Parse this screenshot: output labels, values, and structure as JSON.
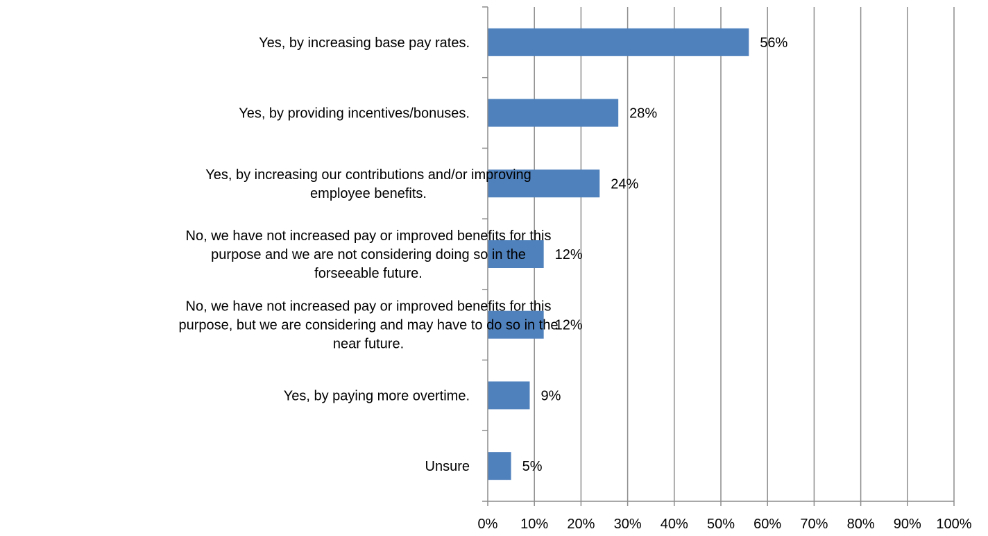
{
  "chart_data": {
    "type": "bar",
    "orientation": "horizontal",
    "title": "",
    "xlabel": "",
    "ylabel": "",
    "xlim": [
      0,
      100
    ],
    "x_ticks": [
      0,
      10,
      20,
      30,
      40,
      50,
      60,
      70,
      80,
      90,
      100
    ],
    "x_tick_labels": [
      "0%",
      "10%",
      "20%",
      "30%",
      "40%",
      "50%",
      "60%",
      "70%",
      "80%",
      "90%",
      "100%"
    ],
    "grid": true,
    "legend": "none",
    "bar_color": "#4f81bd",
    "categories": [
      [
        "Yes, by increasing base pay rates."
      ],
      [
        "Yes, by providing incentives/bonuses."
      ],
      [
        "Yes, by increasing our contributions and/or improving",
        "employee benefits."
      ],
      [
        "No, we have not increased pay or improved benefits for this",
        "purpose and we are not considering doing so in the",
        "forseeable future."
      ],
      [
        "No, we have not increased pay or improved benefits for this",
        "purpose, but we are considering and may have to do so in the",
        "near future."
      ],
      [
        "Yes, by paying more overtime."
      ],
      [
        "Unsure"
      ]
    ],
    "values": [
      56,
      28,
      24,
      12,
      12,
      9,
      5
    ],
    "data_labels": [
      "56%",
      "28%",
      "24%",
      "12%",
      "12%",
      "9%",
      "5%"
    ]
  }
}
